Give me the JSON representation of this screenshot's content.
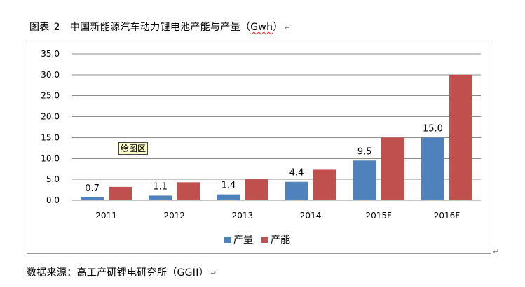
{
  "caption": {
    "prefix": "图表",
    "number": "2",
    "text": "中国新能源汽车动力锂电池产能与产量（",
    "unit": "Gwh",
    "close": "）"
  },
  "paragraph_mark": "↵",
  "plot_area_label": "绘图区",
  "source": "数据来源：高工产研锂电研究所（GGII）",
  "colors": {
    "production": "#4f81bd",
    "capacity": "#c0504d",
    "gridline": "#8c8c8c",
    "axis_text": "#000000"
  },
  "chart_data": {
    "type": "bar",
    "categories": [
      "2011",
      "2012",
      "2013",
      "2014",
      "2015F",
      "2016F"
    ],
    "series": [
      {
        "name": "产量",
        "values": [
          0.7,
          1.1,
          1.4,
          4.4,
          9.5,
          15.0
        ]
      },
      {
        "name": "产能",
        "values": [
          3.2,
          4.3,
          5.0,
          7.3,
          15.0,
          30.0
        ]
      }
    ],
    "data_labels": [
      "0.7",
      "1.1",
      "1.4",
      "4.4",
      "9.5",
      "15.0"
    ],
    "ylim": [
      0,
      35
    ],
    "yticks": [
      "0.0",
      "5.0",
      "10.0",
      "15.0",
      "20.0",
      "25.0",
      "30.0",
      "35.0"
    ],
    "grid": true,
    "legend_position": "bottom"
  }
}
